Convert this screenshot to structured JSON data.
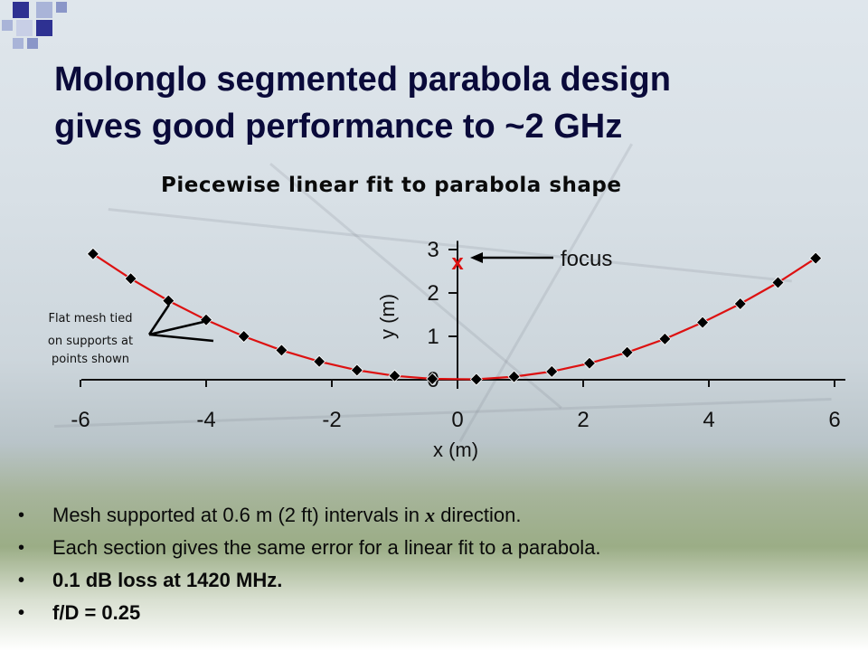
{
  "slide": {
    "title_line1": "Molonglo segmented parabola design",
    "title_line2": "gives good performance to ~2 GHz",
    "subtitle": "Piecewise linear fit to parabola shape"
  },
  "annotations": {
    "focus_marker": "x",
    "focus_label": "focus",
    "support_note": [
      "Flat mesh tied",
      "on supports at",
      "points shown"
    ]
  },
  "bullets": [
    {
      "pre": "Mesh supported at 0.6 m (2 ft) intervals in ",
      "em": "x",
      "post": " direction."
    },
    {
      "pre": "Each section gives the same error for a linear fit to a parabola.",
      "em": "",
      "post": ""
    },
    {
      "pre": "0.1 dB loss at 1420 MHz.",
      "em": "",
      "post": ""
    },
    {
      "pre": "f/D = 0.25",
      "em": "",
      "post": ""
    }
  ],
  "colors": {
    "title": "#0a0a3a",
    "curve": "#dd1111",
    "marker": "#000000",
    "focus_marker": "#dd1111",
    "deco_dark": "#2e3192",
    "deco_light": "#a9b4d8"
  },
  "chart_data": {
    "type": "line",
    "xlabel": "x (m)",
    "ylabel": "y (m)",
    "xlim": [
      -6,
      6
    ],
    "ylim": [
      0,
      3
    ],
    "xticks": [
      "-6",
      "-4",
      "-2",
      "0",
      "2",
      "4",
      "6"
    ],
    "yticks": [
      "3",
      "2",
      "1",
      "0"
    ],
    "focus": {
      "x": 0,
      "y": 2.9
    },
    "series": [
      {
        "x": [
          -5.8,
          -5.2,
          -4.6,
          -4.0,
          -3.4,
          -2.8,
          -2.2,
          -1.6,
          -1.0,
          -0.4,
          0.3,
          0.9,
          1.5,
          2.1,
          2.7,
          3.3,
          3.9,
          4.5,
          5.1,
          5.7
        ],
        "y": [
          2.9,
          2.33,
          1.82,
          1.38,
          1.0,
          0.68,
          0.42,
          0.22,
          0.09,
          0.02,
          0.01,
          0.07,
          0.19,
          0.38,
          0.63,
          0.94,
          1.32,
          1.75,
          2.24,
          2.8
        ]
      }
    ]
  }
}
